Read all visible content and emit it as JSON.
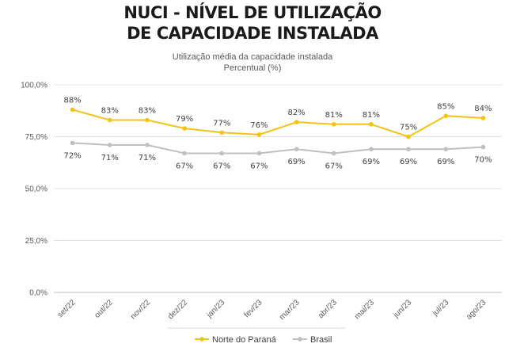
{
  "header": {
    "title_line_1": "NUCI - NÍVEL DE UTILIZAÇÃO",
    "title_line_2": "DE CAPACIDADE INSTALADA",
    "subtitle_line_1": "Utilização média da capacidade instalada",
    "subtitle_line_2": "Percentual (%)"
  },
  "chart_data": {
    "type": "line",
    "title": "Utilização média da capacidade instalada",
    "subtitle": "Percentual (%)",
    "xlabel": "",
    "ylabel": "",
    "categories": [
      "set/22",
      "out/22",
      "nov/22",
      "dez/22",
      "jan/23",
      "fev/23",
      "mar/23",
      "abr/23",
      "mai/23",
      "jun/23",
      "jul/23",
      "ago/23"
    ],
    "series": [
      {
        "name": "Norte do Paraná",
        "color": "#f2c314",
        "values": [
          88,
          83,
          83,
          79,
          77,
          76,
          82,
          81,
          81,
          75,
          85,
          84
        ],
        "labels": [
          "88%",
          "83%",
          "83%",
          "79%",
          "77%",
          "76%",
          "82%",
          "81%",
          "81%",
          "75%",
          "85%",
          "84%"
        ]
      },
      {
        "name": "Brasil",
        "color": "#c0c0c0",
        "values": [
          72,
          71,
          71,
          67,
          67,
          67,
          69,
          67,
          69,
          69,
          69,
          70
        ],
        "labels": [
          "72%",
          "71%",
          "71%",
          "67%",
          "67%",
          "67%",
          "69%",
          "67%",
          "69%",
          "69%",
          "69%",
          "70%"
        ]
      }
    ],
    "ylim": [
      0,
      100
    ],
    "yticks": [
      0,
      25,
      50,
      75,
      100
    ],
    "ytick_labels": [
      "0,0%",
      "25,0%",
      "50,0%",
      "75,0%",
      "100,0%"
    ],
    "grid": true,
    "legend": "bottom"
  }
}
